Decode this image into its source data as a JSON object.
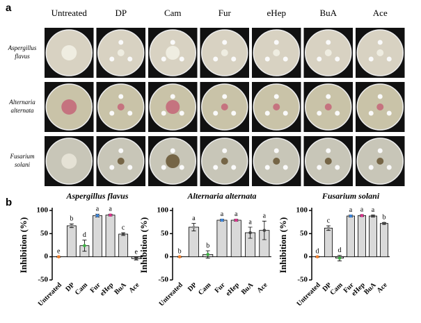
{
  "panels": {
    "a": "a",
    "b": "b"
  },
  "photos": {
    "columns": [
      "Untreated",
      "DP",
      "Cam",
      "Fur",
      "eHep",
      "BuA",
      "Ace"
    ],
    "rows": [
      [
        "Aspergillus",
        "flavus"
      ],
      [
        "Alternaria",
        "alternata"
      ],
      [
        "Fusarium",
        "solani"
      ]
    ]
  },
  "chart_data": [
    {
      "type": "bar",
      "title": "Aspergillus flavus",
      "y_label": "Inhibition (%)",
      "categories": [
        "Untreated",
        "DP",
        "Cam",
        "Fur",
        "eHep",
        "BuA",
        "Ace"
      ],
      "values": [
        0,
        67,
        24,
        89,
        90,
        49,
        -4
      ],
      "errors": [
        1,
        4,
        12,
        3,
        2,
        3,
        3
      ],
      "letters": [
        "e",
        "b",
        "d",
        "a",
        "a",
        "c",
        "e"
      ],
      "bar_color": "#d9d9d9",
      "colors": [
        "#f07f2e",
        "#8c8c8c",
        "#3cb043",
        "#3b82d6",
        "#d6338a",
        "#444444",
        "#444444"
      ],
      "ylim": [
        -50,
        100
      ],
      "yticks": [
        -50,
        0,
        50,
        100
      ]
    },
    {
      "type": "bar",
      "title": "Alternaria alternata",
      "y_label": "Inhibition (%)",
      "categories": [
        "Untreated",
        "DP",
        "Cam",
        "Fur",
        "eHep",
        "BuA",
        "Ace"
      ],
      "values": [
        0,
        64,
        5,
        79,
        79,
        52,
        57
      ],
      "errors": [
        1,
        8,
        8,
        2,
        2,
        12,
        20
      ],
      "letters": [
        "b",
        "a",
        "b",
        "a",
        "a",
        "a",
        "a"
      ],
      "bar_color": "#d9d9d9",
      "colors": [
        "#f07f2e",
        "#8c8c8c",
        "#3cb043",
        "#3b82d6",
        "#d6338a",
        "#444444",
        "#444444"
      ],
      "ylim": [
        -50,
        100
      ],
      "yticks": [
        -50,
        0,
        50,
        100
      ]
    },
    {
      "type": "bar",
      "title": "Fusarium solani",
      "y_label": "Inhibition (%)",
      "categories": [
        "Untreated",
        "DP",
        "Cam",
        "Fur",
        "eHep",
        "BuA",
        "Ace"
      ],
      "values": [
        0,
        62,
        -3,
        88,
        89,
        88,
        72
      ],
      "errors": [
        1,
        5,
        6,
        2,
        2,
        2,
        2
      ],
      "letters": [
        "d",
        "c",
        "d",
        "a",
        "a",
        "a",
        "b"
      ],
      "bar_color": "#d9d9d9",
      "colors": [
        "#f07f2e",
        "#8c8c8c",
        "#3cb043",
        "#3b82d6",
        "#d6338a",
        "#444444",
        "#444444"
      ],
      "ylim": [
        -50,
        100
      ],
      "yticks": [
        -50,
        0,
        50,
        100
      ]
    }
  ]
}
